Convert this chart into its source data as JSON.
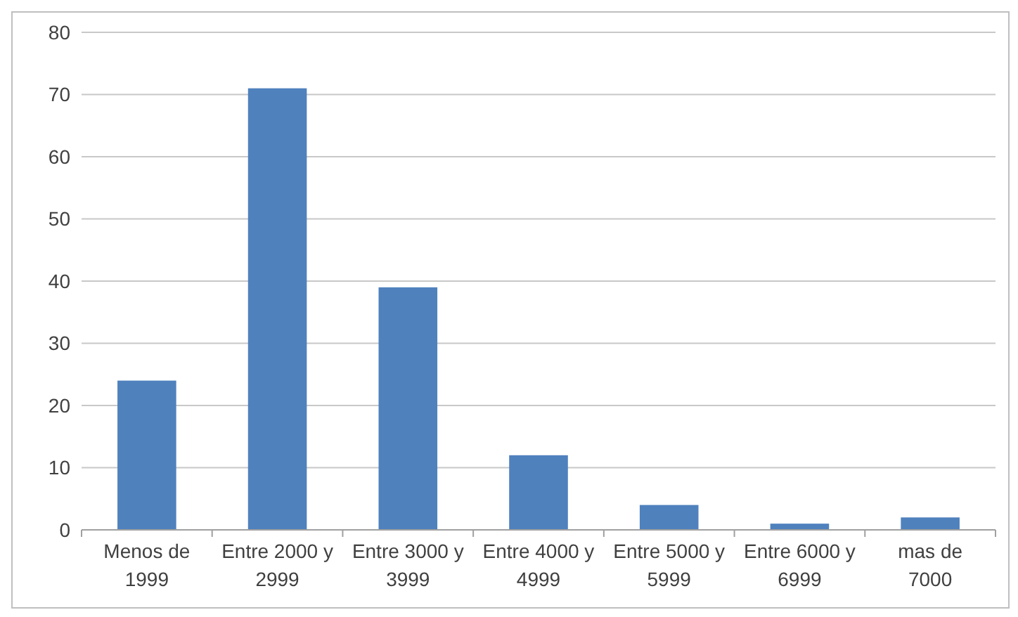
{
  "chart_data": {
    "type": "bar",
    "categories": [
      "Menos de 1999",
      "Entre 2000 y 2999",
      "Entre 3000 y 3999",
      "Entre 4000 y 4999",
      "Entre 5000 y 5999",
      "Entre 6000 y 6999",
      "mas de 7000"
    ],
    "values": [
      24,
      71,
      39,
      12,
      4,
      1,
      2
    ],
    "color": "#4f81bd",
    "ylim": [
      0,
      80
    ],
    "yticks": [
      0,
      10,
      20,
      30,
      40,
      50,
      60,
      70,
      80
    ],
    "grid": "y"
  }
}
